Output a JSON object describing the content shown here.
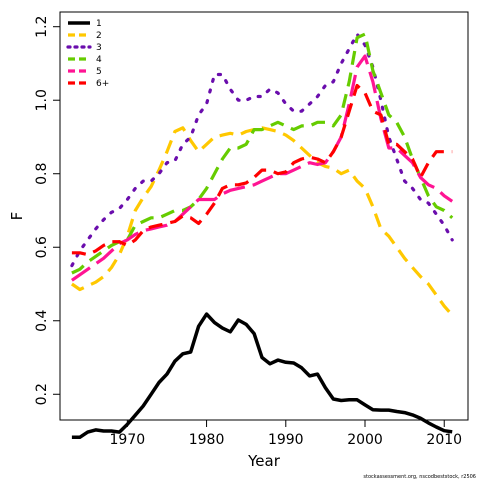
{
  "chart_data": {
    "type": "line",
    "xlabel": "Year",
    "ylabel": "F",
    "xlim": [
      1961.5,
      2013
    ],
    "ylim": [
      0.13,
      1.24
    ],
    "xticks": [
      1970,
      1980,
      1990,
      2000,
      2010
    ],
    "yticks": [
      0.2,
      0.4,
      0.6,
      0.8,
      1.0,
      1.2
    ],
    "ytick_labels": [
      "0.2",
      "0.4",
      "0.6",
      "0.8",
      "1.0",
      "1.2"
    ],
    "legend_position": "top-left",
    "footnote": "stockassessment.org, nscodbeststock, r2506",
    "series": [
      {
        "name": "1",
        "color": "#000000",
        "dash": "solid",
        "x": [
          1963,
          1964,
          1965,
          1966,
          1967,
          1968,
          1969,
          1970,
          1971,
          1972,
          1973,
          1974,
          1975,
          1976,
          1977,
          1978,
          1979,
          1980,
          1981,
          1982,
          1983,
          1984,
          1985,
          1986,
          1987,
          1988,
          1989,
          1990,
          1991,
          1992,
          1993,
          1994,
          1995,
          1996,
          1997,
          1998,
          1999,
          2000,
          2001,
          2002,
          2003,
          2004,
          2005,
          2006,
          2007,
          2008,
          2009,
          2010,
          2011
        ],
        "values": [
          0.083,
          0.083,
          0.097,
          0.103,
          0.1,
          0.1,
          0.097,
          0.118,
          0.143,
          0.168,
          0.2,
          0.232,
          0.255,
          0.29,
          0.31,
          0.315,
          0.385,
          0.418,
          0.395,
          0.38,
          0.37,
          0.402,
          0.39,
          0.365,
          0.3,
          0.283,
          0.293,
          0.287,
          0.285,
          0.272,
          0.25,
          0.255,
          0.218,
          0.187,
          0.183,
          0.185,
          0.185,
          0.171,
          0.158,
          0.157,
          0.157,
          0.153,
          0.15,
          0.144,
          0.135,
          0.122,
          0.111,
          0.101,
          0.098
        ]
      },
      {
        "name": "2",
        "color": "#FFC800",
        "dash": "dash",
        "x": [
          1963,
          1964,
          1965,
          1966,
          1967,
          1968,
          1969,
          1970,
          1971,
          1972,
          1973,
          1974,
          1975,
          1976,
          1977,
          1978,
          1979,
          1980,
          1981,
          1982,
          1983,
          1984,
          1985,
          1986,
          1987,
          1988,
          1989,
          1990,
          1991,
          1992,
          1993,
          1994,
          1995,
          1996,
          1997,
          1998,
          1999,
          2000,
          2001,
          2002,
          2003,
          2004,
          2005,
          2006,
          2007,
          2008,
          2009,
          2010,
          2011
        ],
        "values": [
          0.5,
          0.485,
          0.495,
          0.505,
          0.52,
          0.545,
          0.58,
          0.63,
          0.7,
          0.735,
          0.765,
          0.81,
          0.86,
          0.915,
          0.925,
          0.89,
          0.86,
          0.88,
          0.9,
          0.905,
          0.91,
          0.905,
          0.915,
          0.92,
          0.925,
          0.92,
          0.915,
          0.905,
          0.89,
          0.87,
          0.85,
          0.83,
          0.82,
          0.815,
          0.8,
          0.81,
          0.78,
          0.76,
          0.71,
          0.65,
          0.63,
          0.6,
          0.57,
          0.545,
          0.52,
          0.5,
          0.47,
          0.44,
          0.415
        ]
      },
      {
        "name": "3",
        "color": "#6A0DAD",
        "dash": "dot",
        "x": [
          1963,
          1964,
          1965,
          1966,
          1967,
          1968,
          1969,
          1970,
          1971,
          1972,
          1973,
          1974,
          1975,
          1976,
          1977,
          1978,
          1979,
          1980,
          1981,
          1982,
          1983,
          1984,
          1985,
          1986,
          1987,
          1988,
          1989,
          1990,
          1991,
          1992,
          1993,
          1994,
          1995,
          1996,
          1997,
          1998,
          1999,
          2000,
          2001,
          2002,
          2003,
          2004,
          2005,
          2006,
          2007,
          2008,
          2009,
          2010,
          2011
        ],
        "values": [
          0.55,
          0.59,
          0.62,
          0.65,
          0.675,
          0.695,
          0.705,
          0.73,
          0.76,
          0.78,
          0.78,
          0.8,
          0.83,
          0.835,
          0.88,
          0.9,
          0.96,
          0.99,
          1.07,
          1.07,
          1.03,
          1.0,
          1.0,
          1.01,
          1.01,
          1.03,
          1.02,
          0.99,
          0.97,
          0.97,
          0.99,
          1.01,
          1.04,
          1.05,
          1.1,
          1.14,
          1.18,
          1.15,
          1.09,
          1.0,
          0.9,
          0.84,
          0.78,
          0.76,
          0.73,
          0.72,
          0.69,
          0.66,
          0.62
        ]
      },
      {
        "name": "4",
        "color": "#66CC00",
        "dash": "dash",
        "x": [
          1963,
          1964,
          1965,
          1966,
          1967,
          1968,
          1969,
          1970,
          1971,
          1972,
          1973,
          1974,
          1975,
          1976,
          1977,
          1978,
          1979,
          1980,
          1981,
          1982,
          1983,
          1984,
          1985,
          1986,
          1987,
          1988,
          1989,
          1990,
          1991,
          1992,
          1993,
          1994,
          1995,
          1996,
          1997,
          1998,
          1999,
          2000,
          2001,
          2002,
          2003,
          2004,
          2005,
          2006,
          2007,
          2008,
          2009,
          2010,
          2011
        ],
        "values": [
          0.53,
          0.54,
          0.56,
          0.575,
          0.59,
          0.605,
          0.615,
          0.62,
          0.66,
          0.67,
          0.68,
          0.68,
          0.69,
          0.7,
          0.7,
          0.71,
          0.73,
          0.76,
          0.8,
          0.84,
          0.87,
          0.87,
          0.88,
          0.92,
          0.92,
          0.93,
          0.94,
          0.93,
          0.92,
          0.93,
          0.93,
          0.94,
          0.94,
          0.93,
          0.96,
          1.05,
          1.17,
          1.18,
          1.08,
          1.02,
          0.96,
          0.94,
          0.9,
          0.84,
          0.79,
          0.74,
          0.71,
          0.7,
          0.68
        ]
      },
      {
        "name": "5",
        "color": "#FF1493",
        "dash": "longdash",
        "x": [
          1963,
          1964,
          1965,
          1966,
          1967,
          1968,
          1969,
          1970,
          1971,
          1972,
          1973,
          1974,
          1975,
          1976,
          1977,
          1978,
          1979,
          1980,
          1981,
          1982,
          1983,
          1984,
          1985,
          1986,
          1987,
          1988,
          1989,
          1990,
          1991,
          1992,
          1993,
          1994,
          1995,
          1996,
          1997,
          1998,
          1999,
          2000,
          2001,
          2002,
          2003,
          2004,
          2005,
          2006,
          2007,
          2008,
          2009,
          2010,
          2011
        ],
        "values": [
          0.51,
          0.525,
          0.54,
          0.555,
          0.57,
          0.59,
          0.61,
          0.62,
          0.635,
          0.645,
          0.65,
          0.655,
          0.66,
          0.67,
          0.69,
          0.71,
          0.73,
          0.73,
          0.73,
          0.745,
          0.755,
          0.76,
          0.765,
          0.77,
          0.78,
          0.79,
          0.8,
          0.8,
          0.81,
          0.82,
          0.83,
          0.825,
          0.83,
          0.86,
          0.9,
          0.99,
          1.09,
          1.12,
          1.05,
          0.95,
          0.87,
          0.87,
          0.85,
          0.83,
          0.79,
          0.77,
          0.76,
          0.74,
          0.725
        ]
      },
      {
        "name": "6+",
        "color": "#FF0000",
        "dash": "dash",
        "x": [
          1963,
          1964,
          1965,
          1966,
          1967,
          1968,
          1969,
          1970,
          1971,
          1972,
          1973,
          1974,
          1975,
          1976,
          1977,
          1978,
          1979,
          1980,
          1981,
          1982,
          1983,
          1984,
          1985,
          1986,
          1987,
          1988,
          1989,
          1990,
          1991,
          1992,
          1993,
          1994,
          1995,
          1996,
          1997,
          1998,
          1999,
          2000,
          2001,
          2002,
          2003,
          2004,
          2005,
          2006,
          2007,
          2008,
          2009,
          2010,
          2011
        ],
        "values": [
          0.585,
          0.585,
          0.58,
          0.59,
          0.605,
          0.615,
          0.615,
          0.605,
          0.62,
          0.645,
          0.655,
          0.66,
          0.665,
          0.67,
          0.685,
          0.68,
          0.665,
          0.69,
          0.72,
          0.76,
          0.77,
          0.77,
          0.775,
          0.79,
          0.81,
          0.81,
          0.8,
          0.805,
          0.83,
          0.84,
          0.845,
          0.84,
          0.83,
          0.86,
          0.9,
          0.97,
          1.04,
          1.02,
          0.97,
          0.96,
          0.88,
          0.88,
          0.86,
          0.84,
          0.79,
          0.83,
          0.86,
          0.86,
          0.86
        ]
      }
    ]
  }
}
